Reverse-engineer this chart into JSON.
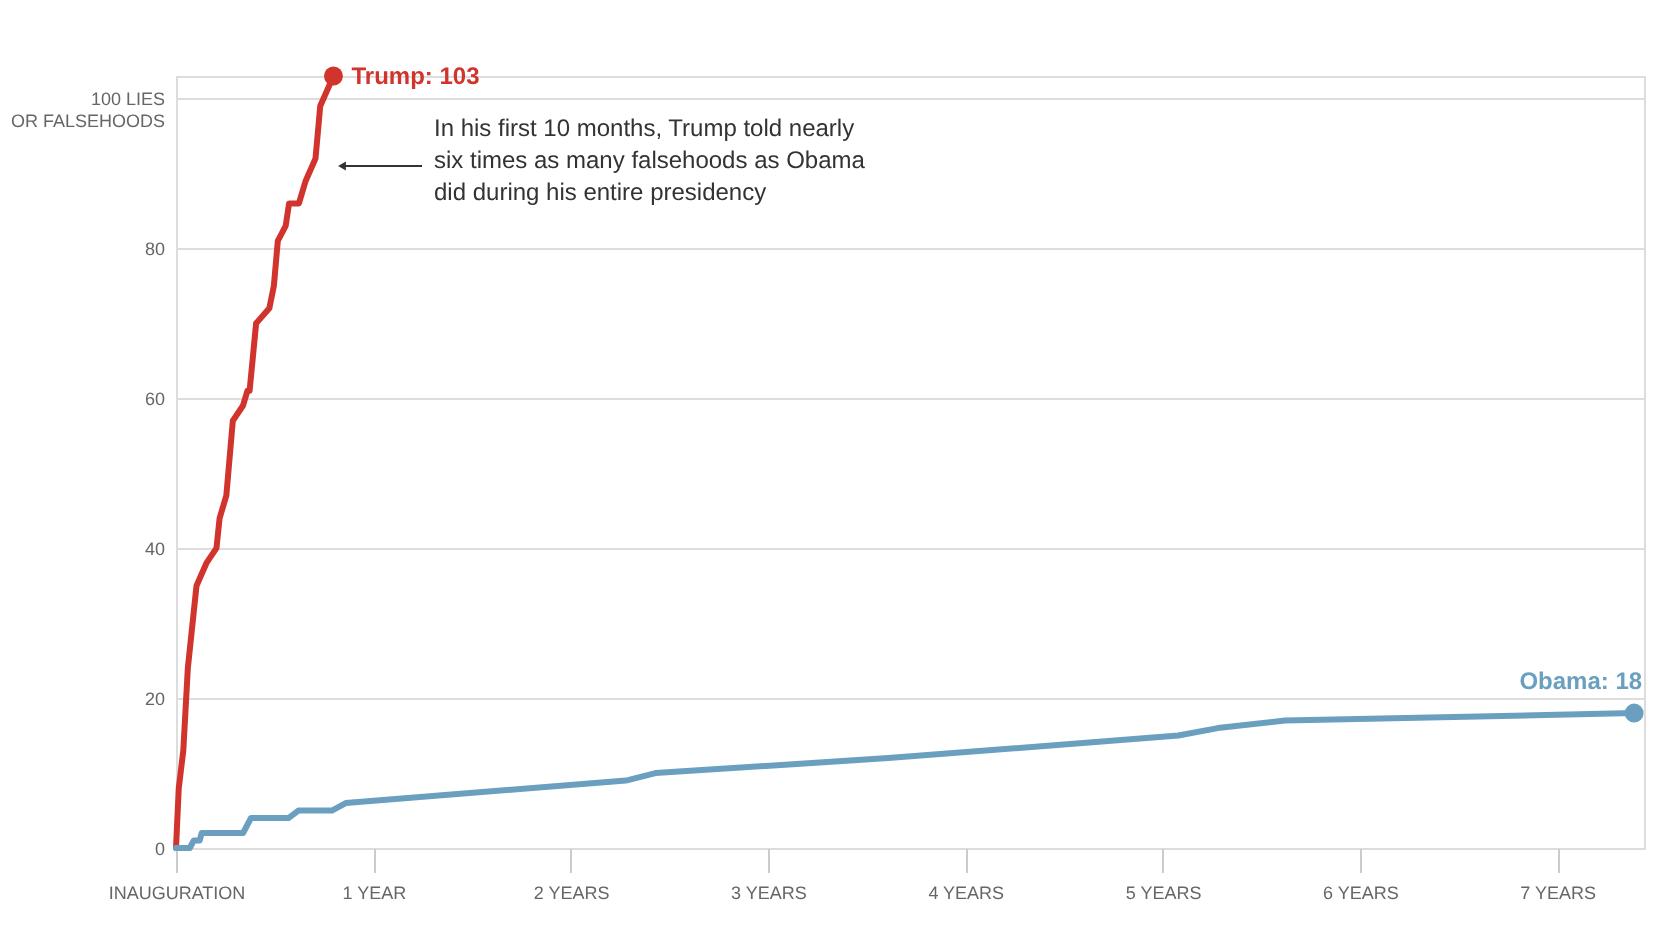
{
  "chart_data": {
    "type": "line",
    "xlim": [
      0,
      7.44
    ],
    "ylim": [
      0,
      103
    ],
    "xticks": [
      {
        "value": 0,
        "label": "INAUGURATION"
      },
      {
        "value": 1,
        "label": "1 YEAR"
      },
      {
        "value": 2,
        "label": "2 YEARS"
      },
      {
        "value": 3,
        "label": "3 YEARS"
      },
      {
        "value": 4,
        "label": "4 YEARS"
      },
      {
        "value": 5,
        "label": "5 YEARS"
      },
      {
        "value": 6,
        "label": "6 YEARS"
      },
      {
        "value": 7,
        "label": "7 YEARS"
      }
    ],
    "yticks": [
      0,
      20,
      40,
      60,
      80,
      {
        "value": 100,
        "label": "100 LIES\nOR FALSEHOODS"
      }
    ],
    "grid": "y",
    "line_style": "solid",
    "series": [
      {
        "color": "#d0342c",
        "x": [
          0,
          0.014,
          0.037,
          0.06,
          0.104,
          0.154,
          0.205,
          0.221,
          0.255,
          0.288,
          0.339,
          0.362,
          0.373,
          0.406,
          0.473,
          0.496,
          0.516,
          0.556,
          0.573,
          0.623,
          0.657,
          0.707,
          0.731,
          0.798
        ],
        "values": [
          0,
          8,
          13,
          24,
          35,
          38,
          40,
          44,
          47,
          57,
          59,
          61,
          61,
          70,
          72,
          75,
          81,
          83,
          86,
          86,
          89,
          92,
          99,
          103
        ],
        "value_labels": [
          null,
          null,
          null,
          null,
          null,
          null,
          null,
          null,
          null,
          null,
          null,
          null,
          null,
          null,
          null,
          null,
          null,
          null,
          null,
          null,
          null,
          null,
          null,
          "Trump: 103"
        ]
      },
      {
        "color": "#6a9fc0",
        "x": [
          0,
          0.07,
          0.09,
          0.12,
          0.13,
          0.34,
          0.38,
          0.57,
          0.62,
          0.79,
          0.86,
          2.28,
          2.43,
          3.61,
          5.08,
          5.28,
          5.62,
          7.39
        ],
        "values": [
          0,
          0,
          1,
          1,
          2,
          2,
          4,
          4,
          5,
          5,
          6,
          9,
          10,
          12,
          15,
          16,
          17,
          18
        ],
        "value_labels": [
          null,
          null,
          null,
          null,
          null,
          null,
          null,
          null,
          null,
          null,
          null,
          null,
          null,
          null,
          null,
          null,
          null,
          "Obama: 18"
        ]
      }
    ],
    "annotations": [
      "In his first 10 months, Trump told nearly\nsix times as many falsehoods as Obama\ndid during his entire presidency"
    ]
  }
}
